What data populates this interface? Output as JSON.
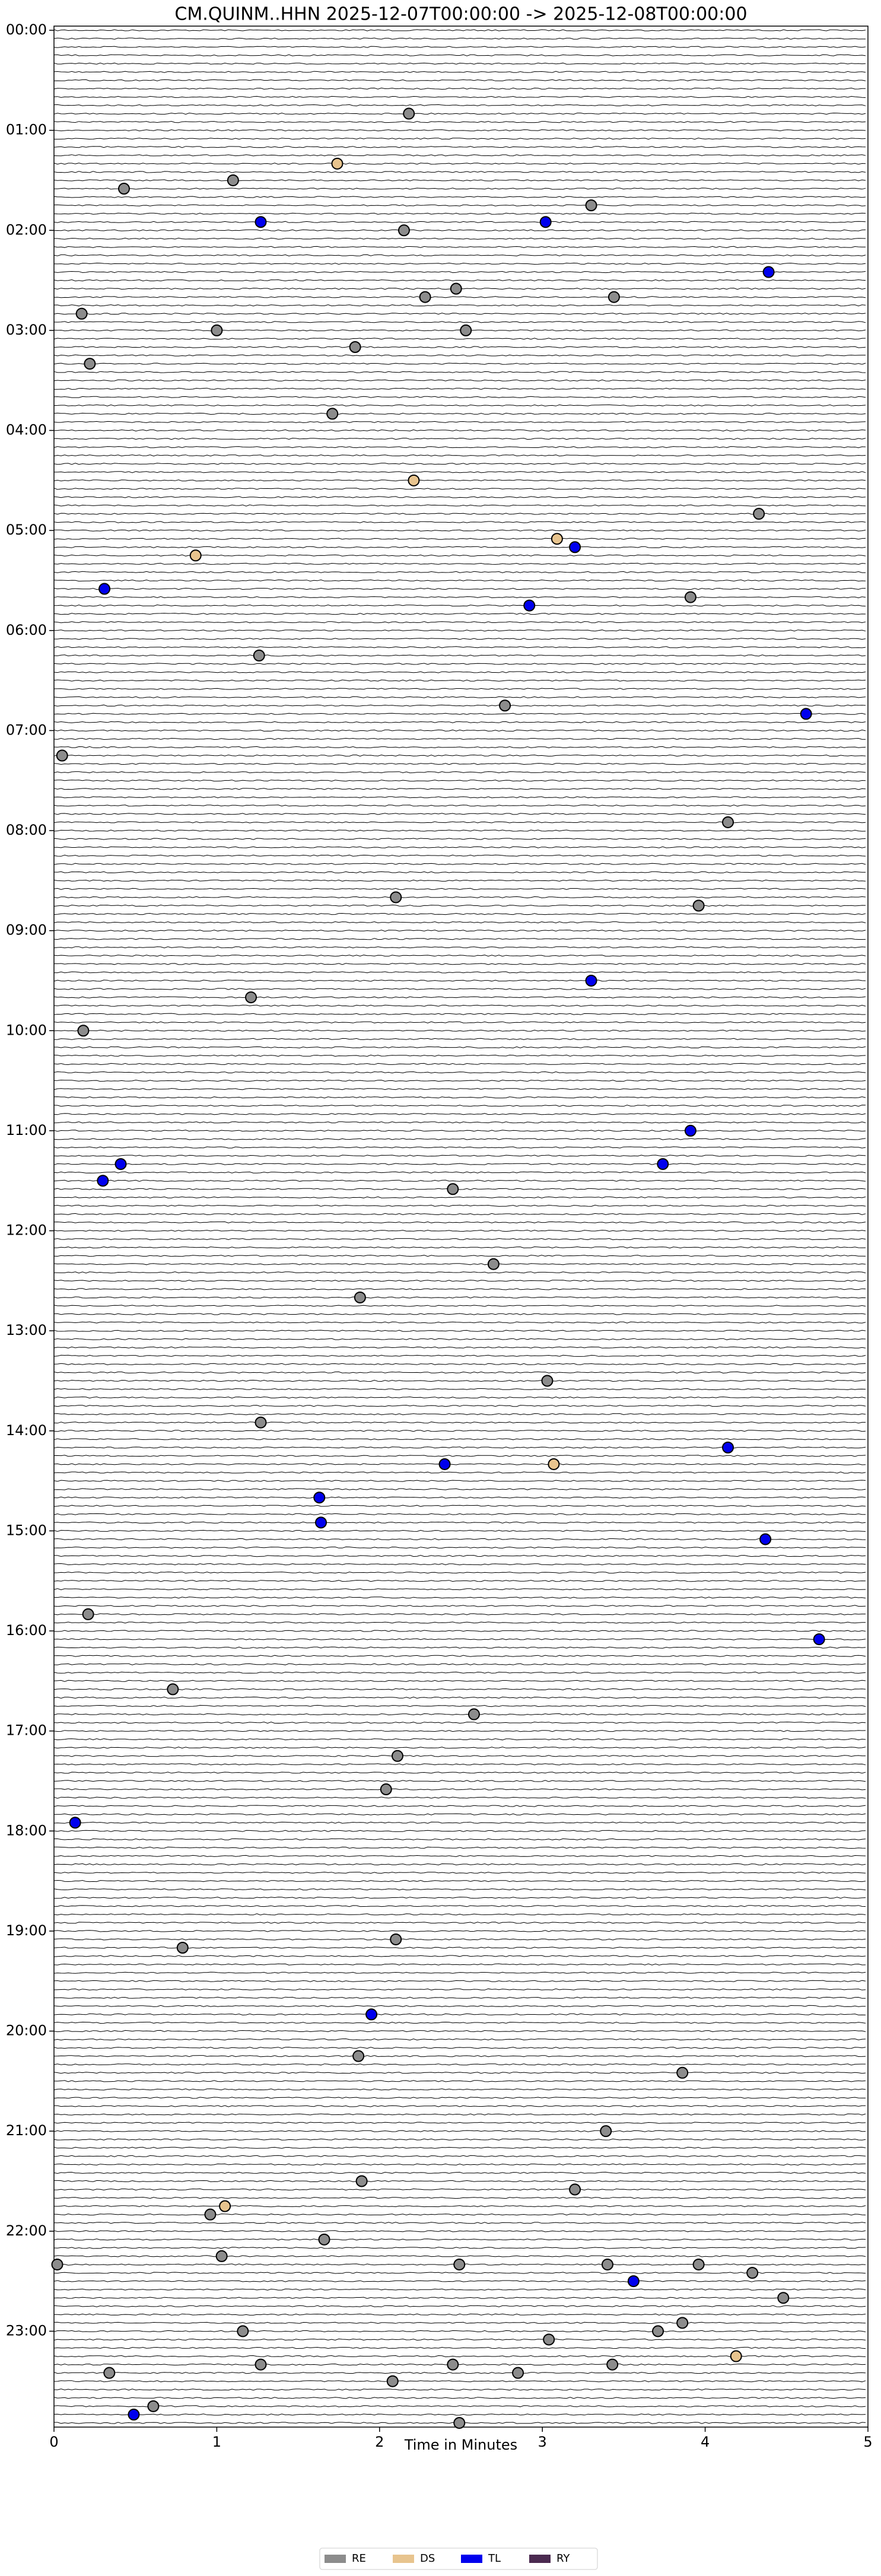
{
  "chart_data": {
    "type": "dayplot",
    "title": "CM.QUINM..HHN  2025-12-07T00:00:00 -> 2025-12-08T00:00:00",
    "x_label": "Time in Minutes",
    "xlim": [
      0,
      5
    ],
    "xticks": [
      0,
      1,
      2,
      3,
      4,
      5
    ],
    "ylim": [
      0,
      1440
    ],
    "yticks": [
      {
        "value": 0,
        "label": "00:00"
      },
      {
        "value": 60,
        "label": "01:00"
      },
      {
        "value": 120,
        "label": "02:00"
      },
      {
        "value": 180,
        "label": "03:00"
      },
      {
        "value": 240,
        "label": "04:00"
      },
      {
        "value": 300,
        "label": "05:00"
      },
      {
        "value": 360,
        "label": "06:00"
      },
      {
        "value": 420,
        "label": "07:00"
      },
      {
        "value": 480,
        "label": "08:00"
      },
      {
        "value": 540,
        "label": "09:00"
      },
      {
        "value": 600,
        "label": "10:00"
      },
      {
        "value": 660,
        "label": "11:00"
      },
      {
        "value": 720,
        "label": "12:00"
      },
      {
        "value": 780,
        "label": "13:00"
      },
      {
        "value": 840,
        "label": "14:00"
      },
      {
        "value": 900,
        "label": "15:00"
      },
      {
        "value": 960,
        "label": "16:00"
      },
      {
        "value": 1020,
        "label": "17:00"
      },
      {
        "value": 1080,
        "label": "18:00"
      },
      {
        "value": 1140,
        "label": "19:00"
      },
      {
        "value": 1200,
        "label": "20:00"
      },
      {
        "value": 1260,
        "label": "21:00"
      },
      {
        "value": 1320,
        "label": "22:00"
      },
      {
        "value": 1380,
        "label": "23:00"
      }
    ],
    "legend": "lower center",
    "series": [
      {
        "name": "RE",
        "color": "#8c8c8c",
        "x": [
          2.18,
          1.1,
          0.43,
          3.3,
          2.15,
          2.47,
          2.28,
          3.44,
          0.17,
          1.0,
          2.53,
          1.85,
          0.22,
          1.71,
          4.33,
          3.91,
          1.26,
          2.77,
          0.05,
          4.14,
          2.1,
          3.96,
          1.21,
          0.18,
          2.45,
          2.7,
          1.88,
          3.03,
          1.27,
          0.21,
          0.73,
          2.58,
          2.11,
          2.04,
          0.79,
          2.1,
          1.87,
          3.86,
          3.39,
          1.89,
          3.2,
          0.96,
          1.66,
          1.03,
          0.02,
          2.49,
          3.4,
          3.96,
          4.29,
          4.48,
          3.86,
          3.71,
          1.16,
          3.04,
          1.27,
          2.45,
          3.43,
          0.34,
          2.85,
          2.08,
          0.61,
          2.49
        ],
        "y": [
          50,
          90,
          95,
          105,
          120,
          155,
          160,
          160,
          170,
          180,
          180,
          190,
          200,
          230,
          290,
          340,
          375,
          405,
          435,
          475,
          520,
          525,
          580,
          600,
          695,
          740,
          760,
          810,
          835,
          950,
          995,
          1010,
          1035,
          1055,
          1150,
          1145,
          1215,
          1225,
          1260,
          1290,
          1295,
          1310,
          1325,
          1335,
          1340,
          1340,
          1340,
          1340,
          1345,
          1360,
          1375,
          1380,
          1380,
          1385,
          1400,
          1400,
          1400,
          1405,
          1405,
          1410,
          1425,
          1435
        ]
      },
      {
        "name": "DS",
        "color": "#e8c48e",
        "x": [
          1.74,
          2.21,
          3.09,
          0.87,
          3.07,
          1.05,
          4.19
        ],
        "y": [
          80,
          270,
          305,
          315,
          860,
          1305,
          1395
        ]
      },
      {
        "name": "TL",
        "color": "#0000ee",
        "x": [
          1.27,
          3.02,
          4.39,
          3.2,
          0.31,
          2.92,
          4.62,
          3.3,
          3.91,
          0.41,
          3.74,
          0.3,
          4.14,
          2.4,
          1.63,
          1.64,
          4.37,
          4.7,
          0.13,
          1.95,
          3.56,
          0.49
        ],
        "y": [
          115,
          115,
          145,
          310,
          335,
          345,
          410,
          570,
          660,
          680,
          680,
          690,
          850,
          860,
          880,
          895,
          905,
          965,
          1075,
          1190,
          1350,
          1430
        ]
      },
      {
        "name": "RY",
        "color": "#4b2a50",
        "x": [],
        "y": []
      }
    ]
  }
}
